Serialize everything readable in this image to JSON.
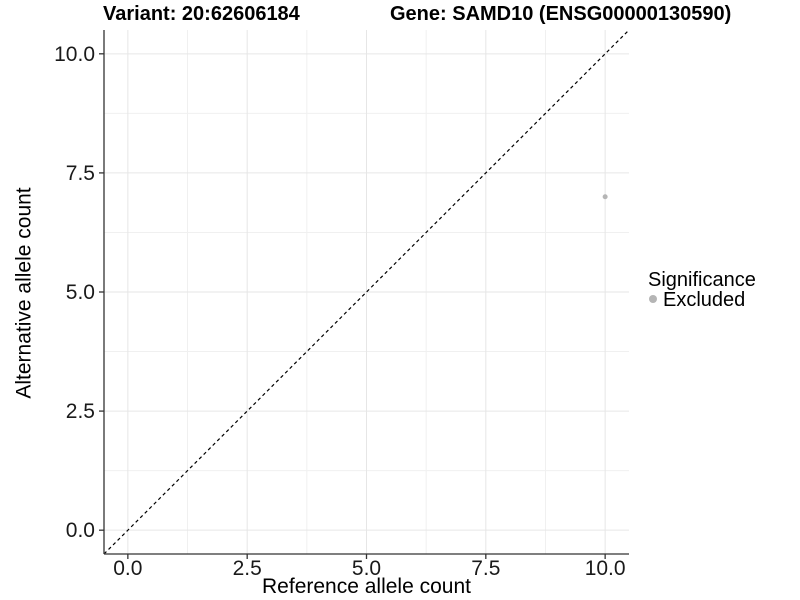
{
  "header": {
    "title_left": "Variant: 20:62606184",
    "title_right": "Gene: SAMD10 (ENSG00000130590)"
  },
  "chart_data": {
    "type": "scatter",
    "xlabel": "Reference allele count",
    "ylabel": "Alternative allele count",
    "xlim": [
      -0.5,
      10.5
    ],
    "ylim": [
      -0.5,
      10.5
    ],
    "x_ticks": [
      0,
      2.5,
      5,
      7.5,
      10
    ],
    "x_tick_labels": [
      "0.0",
      "2.5",
      "5.0",
      "7.5",
      "10.0"
    ],
    "y_ticks": [
      0,
      2.5,
      5,
      7.5,
      10
    ],
    "y_tick_labels": [
      "0.0",
      "2.5",
      "5.0",
      "7.5",
      "10.0"
    ],
    "x_minor_ticks": [
      1.25,
      3.75,
      6.25,
      8.75
    ],
    "y_minor_ticks": [
      1.25,
      3.75,
      6.25,
      8.75
    ],
    "grid": "major+minor",
    "reference_line": {
      "type": "identity",
      "slope": 1,
      "intercept": 0,
      "style": "dashed",
      "color": "#000000"
    },
    "series": [
      {
        "name": "Excluded",
        "color": "#b5b5b5",
        "point_radius": 2.5,
        "points": [
          {
            "x": 10,
            "y": 7
          }
        ]
      }
    ],
    "legend": {
      "title": "Significance",
      "position": "right",
      "entries": [
        {
          "label": "Excluded",
          "color": "#b5b5b5"
        }
      ]
    }
  },
  "colors": {
    "background": "#ffffff",
    "axis_line": "#333333",
    "tick_text": "#1a1a1a",
    "grid_major": "#e6e6e6",
    "grid_minor": "#f0f0f0",
    "excluded_gray": "#b5b5b5"
  }
}
